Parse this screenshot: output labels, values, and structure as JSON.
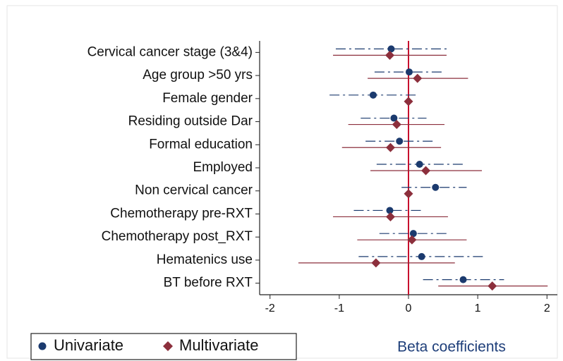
{
  "chart_data": {
    "type": "forest",
    "xlabel": "Beta coefficients",
    "categories": [
      "Cervical cancer stage (3&4)",
      "Age group >50 yrs",
      "Female gender",
      "Residing outside Dar",
      "Formal education",
      "Employed",
      "Non cervical cancer",
      "Chemotherapy pre-RXT",
      "Chemotherapy post_RXT",
      "Hematenics use",
      "BT before RXT"
    ],
    "series": [
      {
        "name": "Univariate",
        "color": "#1b3a6e",
        "marker": "circle",
        "line_style": "dashdot",
        "values": [
          -0.25,
          0.01,
          -0.51,
          -0.21,
          -0.13,
          0.16,
          0.39,
          -0.27,
          0.07,
          0.19,
          0.79
        ],
        "lower": [
          -1.05,
          -0.49,
          -1.14,
          -0.69,
          -0.62,
          -0.46,
          -0.1,
          -0.79,
          -0.42,
          -0.72,
          0.21
        ],
        "upper": [
          0.55,
          0.48,
          0.12,
          0.26,
          0.36,
          0.79,
          0.84,
          0.21,
          0.56,
          1.12,
          1.38
        ]
      },
      {
        "name": "Multivariate",
        "color": "#8c2f3c",
        "marker": "diamond",
        "line_style": "solid",
        "values": [
          -0.27,
          0.13,
          0,
          -0.17,
          -0.26,
          0.25,
          0,
          -0.26,
          0.05,
          -0.47,
          1.21
        ],
        "lower": [
          -1.09,
          -0.59,
          null,
          -0.87,
          -0.96,
          -0.55,
          null,
          -1.09,
          -0.74,
          -1.59,
          0.43
        ],
        "upper": [
          0.55,
          0.86,
          null,
          0.52,
          0.47,
          1.06,
          null,
          0.57,
          0.84,
          0.67,
          2.01
        ]
      }
    ],
    "xlim": [
      -2.15,
      2.15
    ],
    "xticks": [
      -2,
      -1,
      0,
      1,
      2
    ],
    "reference_line": 0,
    "reference_color": "#c8102e"
  }
}
